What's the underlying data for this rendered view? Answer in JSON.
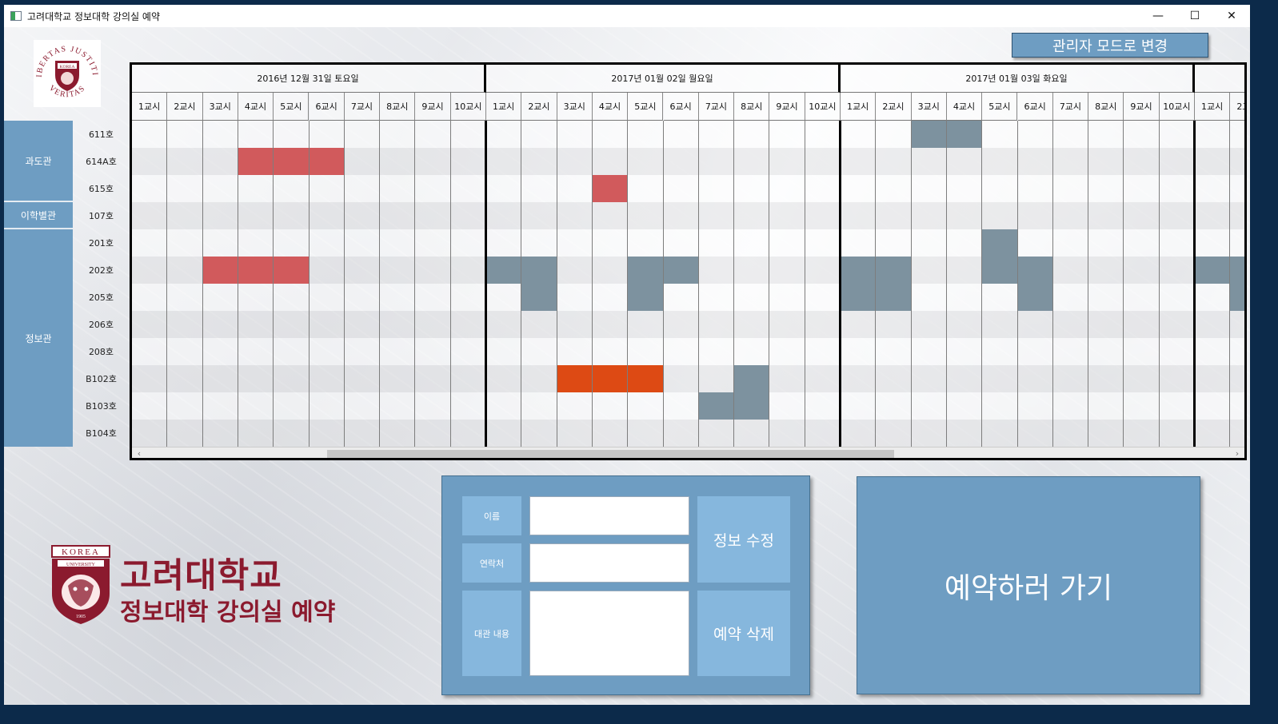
{
  "window": {
    "title": "고려대학교 정보대학 강의실 예약",
    "controls": {
      "minimize": "—",
      "maximize": "☐",
      "close": "✕"
    }
  },
  "seal": {
    "motto_top": "LIBERTAS JUSTITIA",
    "motto_bottom": "VERITAS",
    "name": "KOREA"
  },
  "admin_button": "관리자 모드로 변경",
  "buildings": [
    {
      "name": "과도관",
      "rooms": [
        "611호",
        "614A호",
        "615호"
      ]
    },
    {
      "name": "이학별관",
      "rooms": [
        "107호"
      ]
    },
    {
      "name": "정보관",
      "rooms": [
        "201호",
        "202호",
        "205호",
        "206호",
        "208호",
        "B102호",
        "B103호",
        "B104호"
      ]
    }
  ],
  "days": [
    {
      "label": "2016년 12월 31일 토요일"
    },
    {
      "label": "2017년 01월 02일 월요일"
    },
    {
      "label": "2017년 01월 03일 화요일"
    },
    {
      "label": ""
    }
  ],
  "periods": [
    "1교시",
    "2교시",
    "3교시",
    "4교시",
    "5교시",
    "6교시",
    "7교시",
    "8교시",
    "9교시",
    "10교시"
  ],
  "reservations": [
    {
      "day": 0,
      "room": "614A호",
      "periods": [
        4,
        5,
        6
      ],
      "status": "mine"
    },
    {
      "day": 0,
      "room": "202호",
      "periods": [
        3,
        4,
        5
      ],
      "status": "mine"
    },
    {
      "day": 1,
      "room": "615호",
      "periods": [
        4
      ],
      "status": "mine"
    },
    {
      "day": 1,
      "room": "202호",
      "periods": [
        1,
        2,
        5,
        6
      ],
      "status": "reserved"
    },
    {
      "day": 1,
      "room": "205호",
      "periods": [
        2,
        5
      ],
      "status": "reserved"
    },
    {
      "day": 1,
      "room": "B102호",
      "periods": [
        3,
        4,
        5
      ],
      "status": "selected"
    },
    {
      "day": 1,
      "room": "B102호",
      "periods": [
        8
      ],
      "status": "reserved"
    },
    {
      "day": 1,
      "room": "B103호",
      "periods": [
        7,
        8
      ],
      "status": "reserved"
    },
    {
      "day": 2,
      "room": "611호",
      "periods": [
        3,
        4
      ],
      "status": "reserved"
    },
    {
      "day": 2,
      "room": "201호",
      "periods": [
        5
      ],
      "status": "reserved"
    },
    {
      "day": 2,
      "room": "202호",
      "periods": [
        1,
        2,
        5,
        6
      ],
      "status": "reserved"
    },
    {
      "day": 2,
      "room": "205호",
      "periods": [
        1,
        2,
        6
      ],
      "status": "reserved"
    },
    {
      "day": 3,
      "room": "202호",
      "periods": [
        1,
        2
      ],
      "status": "reserved"
    },
    {
      "day": 3,
      "room": "205호",
      "periods": [
        2
      ],
      "status": "reserved"
    }
  ],
  "colors": {
    "mine": "#d15a5c",
    "reserved": "#7d929f",
    "selected": "#dd4a14",
    "panel": "#6e9dc2",
    "panel_light": "#86b7dd",
    "brand": "#8b1a2e"
  },
  "logo": {
    "emblem_text": "KOREA",
    "emblem_sub": "UNIVERSITY",
    "emblem_year": "1905",
    "title": "고려대학교",
    "subtitle": "정보대학 강의실 예약"
  },
  "form": {
    "name_label": "이름",
    "contact_label": "연락처",
    "content_label": "대관 내용",
    "name_value": "",
    "contact_value": "",
    "content_value": "",
    "edit_button": "정보 수정",
    "delete_button": "예약 삭제"
  },
  "reserve_button": "예약하러 가기"
}
